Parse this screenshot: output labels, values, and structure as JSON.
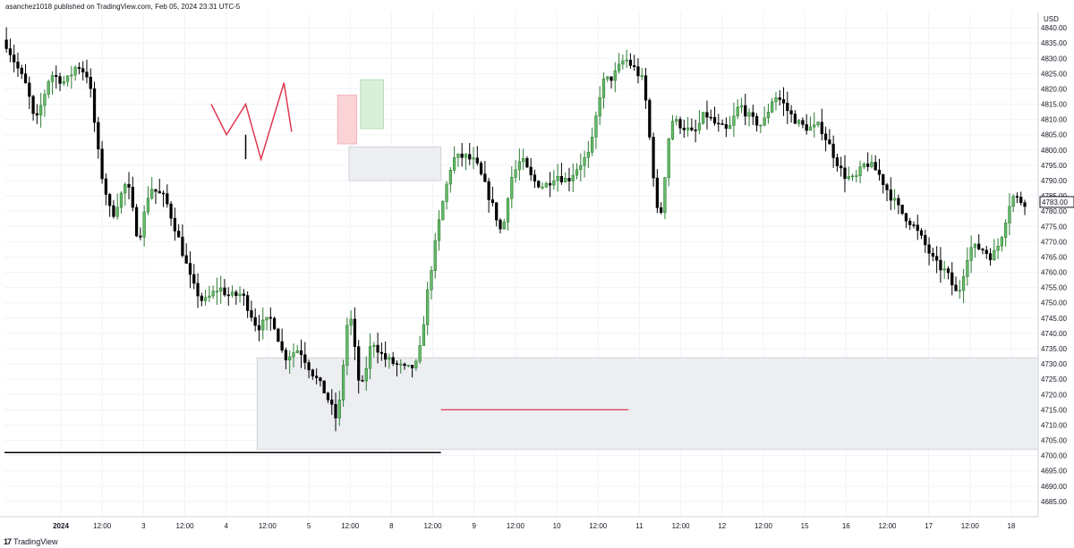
{
  "header": {
    "publisher_text": "asanchez1018 published on TradingView.com, Feb 05, 2024 23:31 UTC-5"
  },
  "footer": {
    "logo_glyph": "17",
    "brand": "TradingView"
  },
  "colors": {
    "up": "#26a69a",
    "up_body": "#2e7d32",
    "down": "#000000",
    "grid": "#f0f3fa",
    "zone_fill": "#eceef2",
    "zone_stroke": "#cfd2d8",
    "red_line": "#e0374f",
    "pink_box": "#f9d3d6",
    "green_box": "#d8efd9",
    "black_line": "#000000"
  },
  "chart_data": {
    "type": "candlestick",
    "title": "",
    "currency_label": "USD",
    "ylim": [
      4680,
      4845
    ],
    "yticks": [
      4685,
      4690,
      4695,
      4700,
      4705,
      4710,
      4715,
      4720,
      4725,
      4730,
      4735,
      4740,
      4745,
      4750,
      4755,
      4760,
      4765,
      4770,
      4775,
      4780,
      4785,
      4790,
      4795,
      4800,
      4805,
      4810,
      4815,
      4820,
      4825,
      4830,
      4835,
      4840
    ],
    "ytick_labels": [
      "4685.00",
      "4690.00",
      "4695.00",
      "4700.00",
      "4705.00",
      "4710.00",
      "4715.00",
      "4720.00",
      "4725.00",
      "4730.00",
      "4735.00",
      "4740.00",
      "4745.00",
      "4750.00",
      "4755.00",
      "4760.00",
      "4765.00",
      "4770.00",
      "4775.00",
      "4780.00",
      "4785.00",
      "4790.00",
      "4795.00",
      "4800.00",
      "4805.00",
      "4810.00",
      "4815.00",
      "4820.00",
      "4825.00",
      "4830.00",
      "4835.00",
      "4840.00"
    ],
    "x_ticks": [
      "2024",
      "12:00",
      "3",
      "12:00",
      "4",
      "12:00",
      "5",
      "12:00",
      "8",
      "12:00",
      "9",
      "12:00",
      "10",
      "12:00",
      "11",
      "12:00",
      "12",
      "12:00",
      "15",
      "16",
      "12:00",
      "17",
      "12:00",
      "18"
    ],
    "last_price_label": "4783.00",
    "last_price": 4783,
    "price_path": [
      [
        0,
        4836
      ],
      [
        6,
        4820
      ],
      [
        8,
        4808
      ],
      [
        12,
        4825
      ],
      [
        16,
        4822
      ],
      [
        19,
        4828
      ],
      [
        22,
        4824
      ],
      [
        25,
        4794
      ],
      [
        28,
        4778
      ],
      [
        32,
        4790
      ],
      [
        35,
        4770
      ],
      [
        38,
        4788
      ],
      [
        42,
        4784
      ],
      [
        45,
        4773
      ],
      [
        49,
        4756
      ],
      [
        52,
        4750
      ],
      [
        56,
        4755
      ],
      [
        59,
        4752
      ],
      [
        62,
        4753
      ],
      [
        66,
        4742
      ],
      [
        70,
        4745
      ],
      [
        73,
        4732
      ],
      [
        77,
        4735
      ],
      [
        80,
        4728
      ],
      [
        84,
        4720
      ],
      [
        87,
        4711
      ],
      [
        90,
        4749
      ],
      [
        93,
        4720
      ],
      [
        96,
        4738
      ],
      [
        99,
        4732
      ],
      [
        102,
        4730
      ],
      [
        105,
        4728
      ],
      [
        108,
        4730
      ],
      [
        111,
        4758
      ],
      [
        114,
        4780
      ],
      [
        117,
        4797
      ],
      [
        120,
        4798
      ],
      [
        123,
        4796
      ],
      [
        125,
        4790
      ],
      [
        128,
        4780
      ],
      [
        130,
        4772
      ],
      [
        132,
        4790
      ],
      [
        135,
        4797
      ],
      [
        138,
        4790
      ],
      [
        141,
        4788
      ],
      [
        144,
        4792
      ],
      [
        147,
        4790
      ],
      [
        150,
        4795
      ],
      [
        153,
        4799
      ],
      [
        156,
        4822
      ],
      [
        159,
        4824
      ],
      [
        162,
        4830
      ],
      [
        165,
        4826
      ],
      [
        167,
        4822
      ],
      [
        169,
        4798
      ],
      [
        171,
        4774
      ],
      [
        174,
        4810
      ],
      [
        177,
        4808
      ],
      [
        180,
        4805
      ],
      [
        183,
        4812
      ],
      [
        186,
        4808
      ],
      [
        189,
        4806
      ],
      [
        192,
        4815
      ],
      [
        195,
        4810
      ],
      [
        198,
        4808
      ],
      [
        201,
        4818
      ],
      [
        203,
        4816
      ],
      [
        205,
        4812
      ],
      [
        208,
        4808
      ],
      [
        211,
        4807
      ],
      [
        213,
        4808
      ],
      [
        216,
        4800
      ],
      [
        219,
        4792
      ],
      [
        222,
        4790
      ],
      [
        225,
        4796
      ],
      [
        228,
        4793
      ],
      [
        231,
        4786
      ],
      [
        234,
        4780
      ],
      [
        237,
        4776
      ],
      [
        240,
        4770
      ],
      [
        243,
        4763
      ],
      [
        246,
        4760
      ],
      [
        249,
        4752
      ],
      [
        252,
        4768
      ],
      [
        255,
        4768
      ],
      [
        258,
        4765
      ],
      [
        260,
        4770
      ],
      [
        263,
        4785
      ],
      [
        266,
        4783
      ]
    ],
    "annotations": [
      {
        "type": "rectangle",
        "label": "lower-zone",
        "t1": 66,
        "t2": 270,
        "p1": 4732,
        "p2": 4702
      },
      {
        "type": "rectangle",
        "label": "upper-zone",
        "t1": 90,
        "t2": 114,
        "p1": 4801,
        "p2": 4790
      },
      {
        "type": "rectangle",
        "label": "pink-box",
        "t1": 87,
        "t2": 92,
        "p1": 4818,
        "p2": 4802
      },
      {
        "type": "rectangle",
        "label": "green-box",
        "t1": 93,
        "t2": 99,
        "p1": 4823,
        "p2": 4807
      },
      {
        "type": "hline",
        "label": "red-level",
        "t1": 114,
        "t2": 163,
        "p": 4715
      },
      {
        "type": "hline",
        "label": "black-level",
        "t1": 0,
        "t2": 114,
        "p": 4701
      },
      {
        "type": "polyline",
        "label": "red-w",
        "points": [
          [
            54,
            4815
          ],
          [
            58,
            4805
          ],
          [
            63,
            4815
          ],
          [
            67,
            4797
          ],
          [
            73,
            4822
          ],
          [
            75,
            4806
          ]
        ]
      },
      {
        "type": "vline",
        "label": "mini-candle",
        "t": 63,
        "p1": 4805,
        "p2": 4797
      }
    ]
  }
}
